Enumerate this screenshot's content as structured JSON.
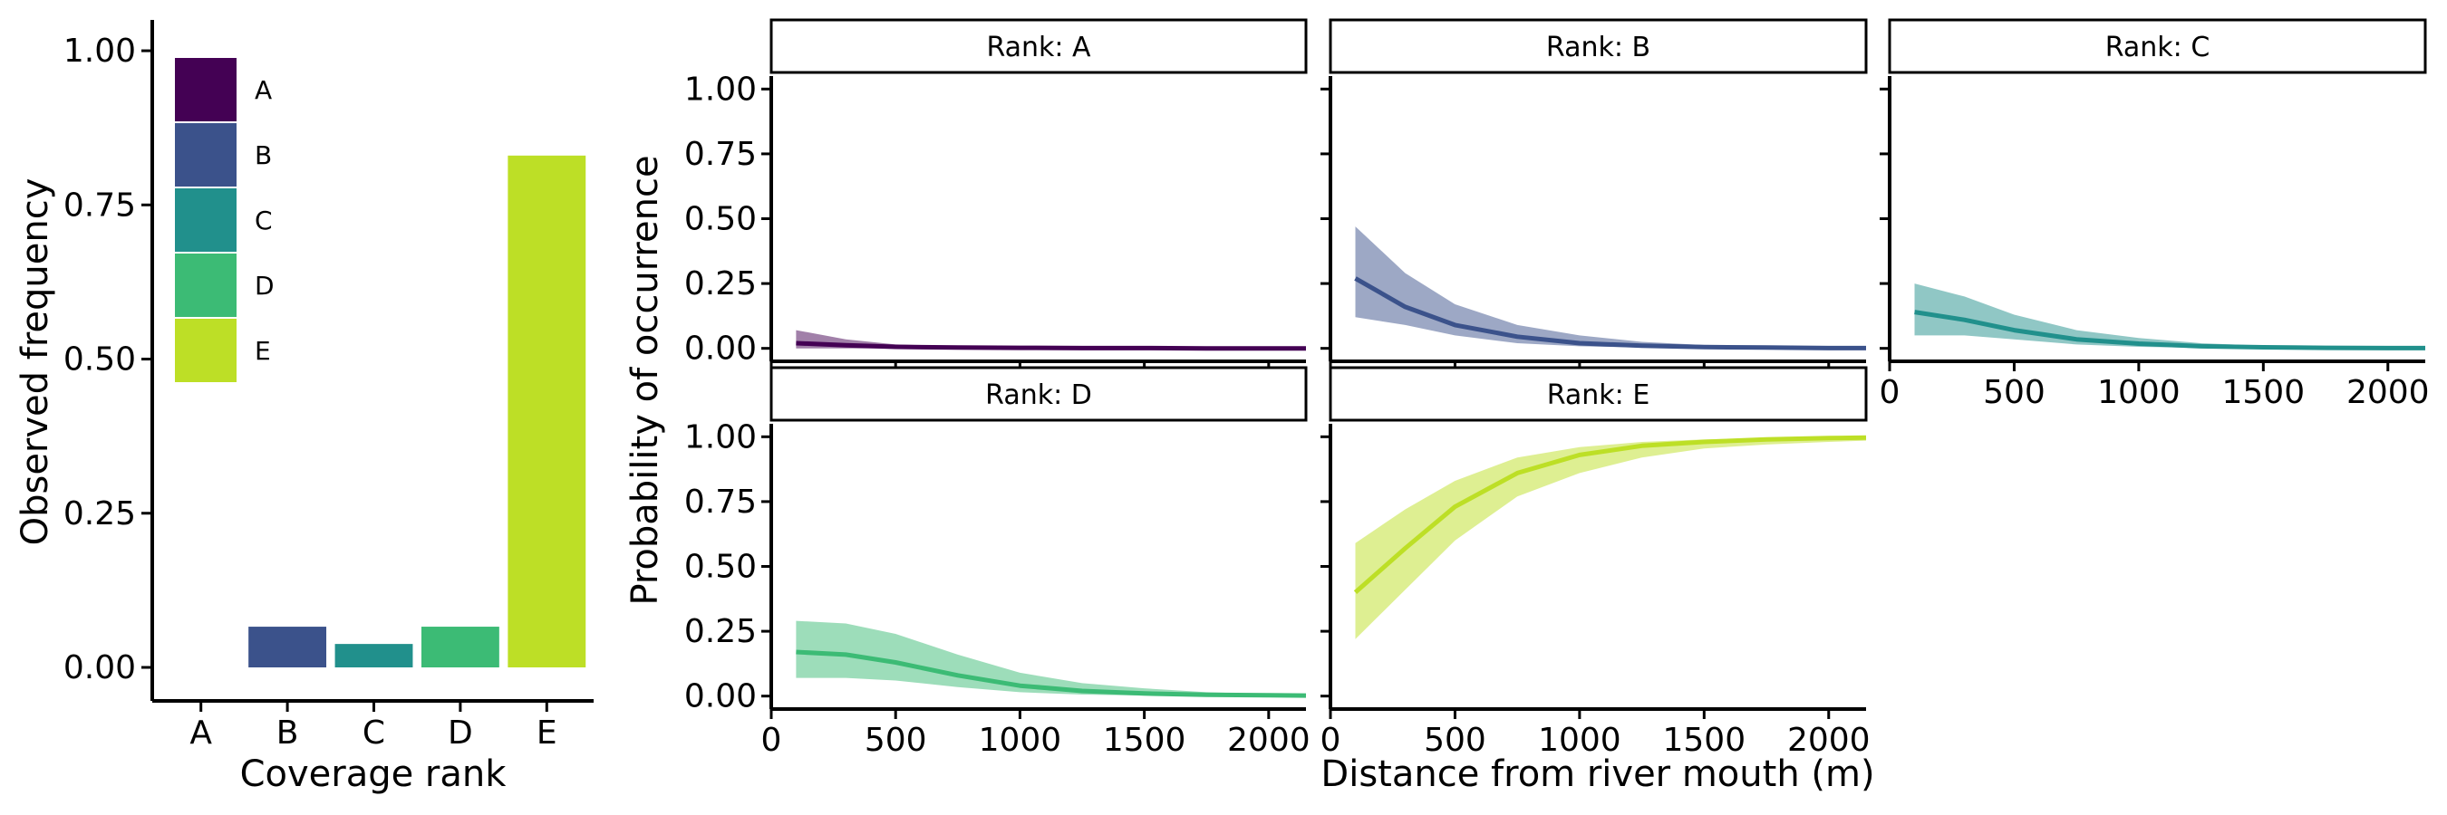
{
  "chart_data": [
    {
      "type": "bar",
      "xlabel": "Coverage rank",
      "ylabel": "Observed frequency",
      "categories": [
        "A",
        "B",
        "C",
        "D",
        "E"
      ],
      "values": [
        0.0,
        0.066,
        0.038,
        0.066,
        0.83
      ],
      "ylim": [
        0,
        1.05
      ],
      "yticks": [
        "0.00",
        "0.25",
        "0.50",
        "0.75",
        "1.00"
      ],
      "legend": {
        "placement": "top-left",
        "entries": [
          "A",
          "B",
          "C",
          "D",
          "E"
        ]
      },
      "colors": [
        "#440154",
        "#3B528B",
        "#21908C",
        "#3CBB75",
        "#BDDF26"
      ],
      "grid": false
    },
    {
      "type": "line",
      "xlabel": "Distance from river mouth (m)",
      "ylabel": "Probability of occurrence",
      "xlim": [
        0,
        2150
      ],
      "ylim": [
        -0.05,
        1.05
      ],
      "xticks": [
        "0",
        "500",
        "1000",
        "1500",
        "2000"
      ],
      "yticks": [
        "0.00",
        "0.25",
        "0.50",
        "0.75",
        "1.00"
      ],
      "grid": false,
      "facets": [
        {
          "strip": "Rank: A",
          "color": "#440154",
          "x": [
            100,
            300,
            500,
            750,
            1000,
            1250,
            1500,
            1750,
            2000,
            2150
          ],
          "y": [
            0.02,
            0.012,
            0.006,
            0.003,
            0.002,
            0.001,
            0.001,
            0.0,
            0.0,
            0.0
          ],
          "lower": [
            0.0,
            0.0,
            0.0,
            0.0,
            0.0,
            0.0,
            0.0,
            0.0,
            0.0,
            0.0
          ],
          "upper": [
            0.07,
            0.035,
            0.015,
            0.008,
            0.005,
            0.003,
            0.002,
            0.001,
            0.001,
            0.001
          ]
        },
        {
          "strip": "Rank: B",
          "color": "#3B528B",
          "x": [
            100,
            300,
            500,
            750,
            1000,
            1250,
            1500,
            1750,
            2000,
            2150
          ],
          "y": [
            0.27,
            0.16,
            0.09,
            0.045,
            0.02,
            0.01,
            0.005,
            0.003,
            0.001,
            0.001
          ],
          "lower": [
            0.12,
            0.09,
            0.05,
            0.02,
            0.008,
            0.003,
            0.001,
            0.0,
            0.0,
            0.0
          ],
          "upper": [
            0.47,
            0.29,
            0.17,
            0.09,
            0.05,
            0.025,
            0.013,
            0.007,
            0.003,
            0.002
          ]
        },
        {
          "strip": "Rank: C",
          "color": "#21908C",
          "x": [
            100,
            300,
            500,
            750,
            1000,
            1250,
            1500,
            1750,
            2000,
            2150
          ],
          "y": [
            0.14,
            0.11,
            0.07,
            0.035,
            0.018,
            0.008,
            0.004,
            0.002,
            0.001,
            0.001
          ],
          "lower": [
            0.05,
            0.05,
            0.035,
            0.015,
            0.006,
            0.002,
            0.001,
            0.0,
            0.0,
            0.0
          ],
          "upper": [
            0.25,
            0.2,
            0.13,
            0.07,
            0.04,
            0.02,
            0.01,
            0.005,
            0.003,
            0.002
          ]
        },
        {
          "strip": "Rank: D",
          "color": "#3CBB75",
          "x": [
            100,
            300,
            500,
            750,
            1000,
            1250,
            1500,
            1750,
            2000,
            2150
          ],
          "y": [
            0.17,
            0.16,
            0.13,
            0.08,
            0.04,
            0.02,
            0.01,
            0.005,
            0.003,
            0.002
          ],
          "lower": [
            0.07,
            0.07,
            0.06,
            0.035,
            0.015,
            0.006,
            0.002,
            0.001,
            0.0,
            0.0
          ],
          "upper": [
            0.29,
            0.28,
            0.24,
            0.16,
            0.09,
            0.05,
            0.03,
            0.015,
            0.008,
            0.005
          ]
        },
        {
          "strip": "Rank: E",
          "color": "#BDDF26",
          "x": [
            100,
            300,
            500,
            750,
            1000,
            1250,
            1500,
            1750,
            2000,
            2150
          ],
          "y": [
            0.4,
            0.57,
            0.73,
            0.86,
            0.93,
            0.965,
            0.98,
            0.99,
            0.995,
            0.997
          ],
          "lower": [
            0.22,
            0.41,
            0.6,
            0.77,
            0.86,
            0.92,
            0.955,
            0.97,
            0.98,
            0.985
          ],
          "upper": [
            0.59,
            0.72,
            0.83,
            0.92,
            0.96,
            0.98,
            0.99,
            0.995,
            0.998,
            0.999
          ]
        }
      ]
    }
  ]
}
